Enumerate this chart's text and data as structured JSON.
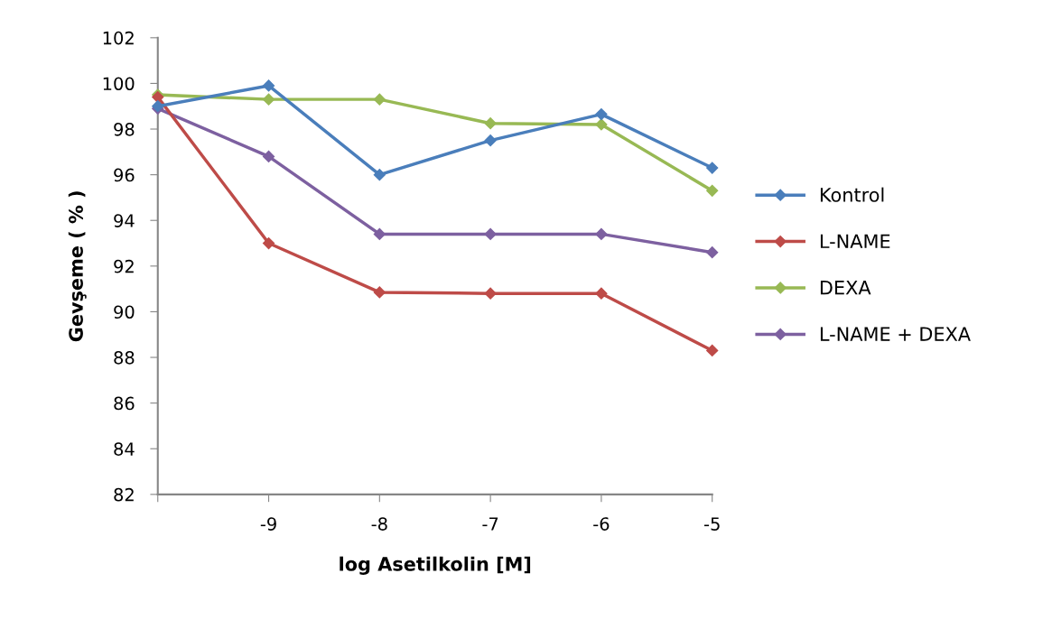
{
  "chart_data": {
    "type": "line",
    "xlabel": "log Asetilkolin [M]",
    "ylabel": "Gevşeme ( % )",
    "categories": [
      null,
      "-9",
      "-8",
      "-7",
      "-6",
      "-5"
    ],
    "series": [
      {
        "name": "Kontrol",
        "color": "#4a7ebb",
        "values": [
          99.0,
          99.9,
          96.0,
          97.5,
          98.65,
          96.3
        ]
      },
      {
        "name": "L-NAME",
        "color": "#be4b48",
        "values": [
          99.4,
          93.0,
          90.85,
          90.8,
          90.8,
          88.3
        ]
      },
      {
        "name": "DEXA",
        "color": "#98b954",
        "values": [
          99.5,
          99.3,
          99.3,
          98.25,
          98.2,
          95.3
        ]
      },
      {
        "name": "L-NAME + DEXA",
        "color": "#7d60a0",
        "values": [
          98.9,
          96.8,
          93.4,
          93.4,
          93.4,
          92.6
        ]
      }
    ],
    "ylim": [
      82,
      102
    ],
    "yticks": [
      82,
      84,
      86,
      88,
      90,
      92,
      94,
      96,
      98,
      100,
      102
    ],
    "grid": false,
    "legend": "right",
    "marker": "diamond",
    "line_style": "solid"
  }
}
